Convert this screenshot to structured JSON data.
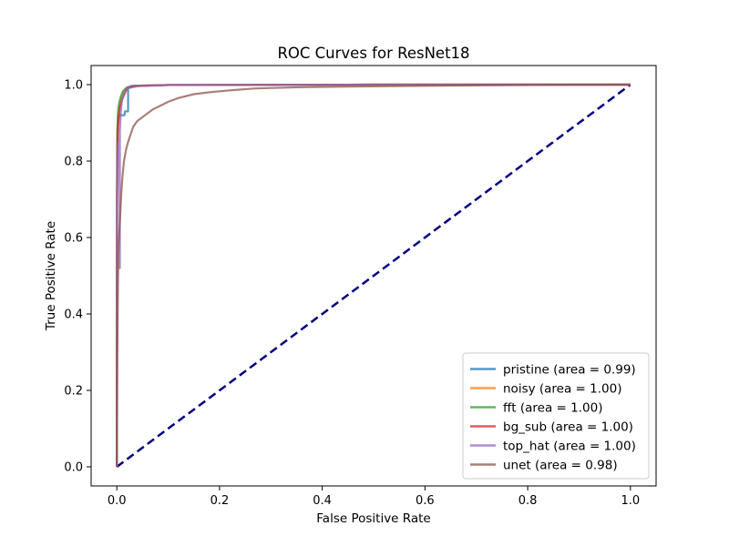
{
  "chart_data": {
    "type": "line",
    "title": "ROC Curves for ResNet18",
    "xlabel": "False Positive Rate",
    "ylabel": "True Positive Rate",
    "xlim": [
      -0.05,
      1.05
    ],
    "ylim": [
      -0.05,
      1.05
    ],
    "xticks": [
      0.0,
      0.2,
      0.4,
      0.6,
      0.8,
      1.0
    ],
    "yticks": [
      0.0,
      0.2,
      0.4,
      0.6,
      0.8,
      1.0
    ],
    "xtick_labels": [
      "0.0",
      "0.2",
      "0.4",
      "0.6",
      "0.8",
      "1.0"
    ],
    "ytick_labels": [
      "0.0",
      "0.2",
      "0.4",
      "0.6",
      "0.8",
      "1.0"
    ],
    "grid": false,
    "legend_position": "lower-right",
    "series": [
      {
        "name": "pristine (area = 0.99)",
        "color": "#1f77b4",
        "x": [
          0,
          0.0005,
          0.001,
          0.002,
          0.003,
          0.005,
          0.008,
          0.012,
          0.015,
          0.016,
          0.02,
          0.022,
          0.022,
          0.025,
          0.03,
          0.1,
          0.5,
          1.0
        ],
        "y": [
          0,
          0.7,
          0.85,
          0.9,
          0.91,
          0.92,
          0.92,
          0.92,
          0.92,
          0.93,
          0.93,
          0.93,
          0.99,
          0.995,
          0.997,
          0.999,
          1.0,
          1.0
        ]
      },
      {
        "name": "noisy (area = 1.00)",
        "color": "#ff7f0e",
        "x": [
          0,
          0.0005,
          0.001,
          0.002,
          0.003,
          0.005,
          0.008,
          0.01,
          0.015,
          0.02,
          0.04,
          0.1,
          0.5,
          1.0
        ],
        "y": [
          0,
          0.7,
          0.85,
          0.9,
          0.92,
          0.94,
          0.96,
          0.97,
          0.985,
          0.993,
          0.997,
          0.999,
          1.0,
          1.0
        ]
      },
      {
        "name": "fft (area = 1.00)",
        "color": "#2ca02c",
        "x": [
          0,
          0.0005,
          0.001,
          0.002,
          0.003,
          0.005,
          0.008,
          0.012,
          0.02,
          0.04,
          0.1,
          0.5,
          1.0
        ],
        "y": [
          0,
          0.8,
          0.88,
          0.92,
          0.94,
          0.955,
          0.97,
          0.983,
          0.993,
          0.997,
          0.999,
          1.0,
          1.0
        ]
      },
      {
        "name": "bg_sub (area = 1.00)",
        "color": "#d62728",
        "x": [
          0,
          0.0005,
          0.001,
          0.002,
          0.004,
          0.006,
          0.01,
          0.015,
          0.02,
          0.03,
          0.05,
          0.1,
          0.5,
          1.0
        ],
        "y": [
          0,
          0.72,
          0.82,
          0.88,
          0.92,
          0.94,
          0.96,
          0.975,
          0.99,
          0.995,
          0.997,
          0.999,
          1.0,
          1.0
        ]
      },
      {
        "name": "top_hat (area = 1.00)",
        "color": "#9467bd",
        "x": [
          0,
          0.0005,
          0.001,
          0.002,
          0.003,
          0.005,
          0.006,
          0.006,
          0.008,
          0.01,
          0.015,
          0.02,
          0.04,
          0.1,
          0.5,
          1.0
        ],
        "y": [
          0,
          0.7,
          0.8,
          0.82,
          0.85,
          0.86,
          0.52,
          0.88,
          0.93,
          0.96,
          0.98,
          0.99,
          0.996,
          0.999,
          1.0,
          1.0
        ]
      },
      {
        "name": "unet (area = 0.98)",
        "color": "#8c564b",
        "x": [
          0,
          0.001,
          0.002,
          0.003,
          0.005,
          0.007,
          0.009,
          0.011,
          0.014,
          0.018,
          0.022,
          0.027,
          0.032,
          0.04,
          0.05,
          0.06,
          0.07,
          0.085,
          0.1,
          0.12,
          0.15,
          0.18,
          0.22,
          0.27,
          0.35,
          0.45,
          0.6,
          0.8,
          1.0
        ],
        "y": [
          0,
          0.3,
          0.45,
          0.55,
          0.62,
          0.67,
          0.72,
          0.76,
          0.8,
          0.83,
          0.85,
          0.87,
          0.89,
          0.905,
          0.915,
          0.925,
          0.935,
          0.945,
          0.955,
          0.965,
          0.975,
          0.98,
          0.985,
          0.99,
          0.993,
          0.995,
          0.997,
          0.999,
          1.0
        ]
      }
    ],
    "reference_line": {
      "color": "#000080",
      "style": "dashed",
      "x": [
        0,
        1
      ],
      "y": [
        0,
        1
      ]
    }
  }
}
